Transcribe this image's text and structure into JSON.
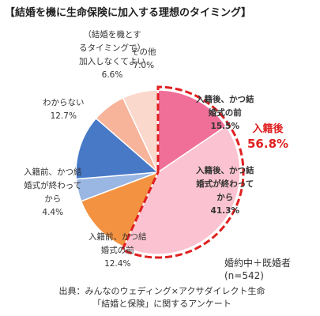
{
  "title": "【結婚を機に生命保険に加入する理想のタイミング】",
  "chart_data": {
    "type": "pie",
    "slices": [
      {
        "label_lines": [
          "入籍後、かつ結",
          "婚式の前"
        ],
        "value": 15.5,
        "value_text": "15.5%",
        "color": "#f06f98",
        "highlight": true
      },
      {
        "label_lines": [
          "入籍後、かつ結",
          "婚式が終わって",
          "から"
        ],
        "value": 41.3,
        "value_text": "41.3%",
        "color": "#fbc3d1",
        "highlight": true
      },
      {
        "label_lines": [
          "入籍前、かつ結",
          "婚式の前"
        ],
        "value": 12.4,
        "value_text": "12.4%",
        "color": "#f39241",
        "highlight": false
      },
      {
        "label_lines": [
          "入籍前、かつ結",
          "婚式が終わって",
          "から"
        ],
        "value": 4.4,
        "value_text": "4.4%",
        "color": "#9ab6e2",
        "highlight": false
      },
      {
        "label_lines": [
          "わからない"
        ],
        "value": 12.7,
        "value_text": "12.7%",
        "color": "#4779c7",
        "highlight": false
      },
      {
        "label_lines": [
          "（結婚を機とす",
          "るタイミングで）",
          "加入しなくてよい"
        ],
        "value": 6.6,
        "value_text": "6.6%",
        "color": "#f7b49a",
        "highlight": false
      },
      {
        "label_lines": [
          "その他"
        ],
        "value": 7.0,
        "value_text": "7.0%",
        "color": "#fbd8cc",
        "highlight": false
      }
    ],
    "highlight_group": {
      "label": "入籍後",
      "value_text": "56.8%",
      "color": "#e02020"
    },
    "note_lines": [
      "婚約中＋既婚者",
      "(n=542)"
    ]
  },
  "source_lines": [
    "出典：みんなのウェディング×アクサダイレクト生命",
    "「結婚と保険」に関するアンケート"
  ]
}
